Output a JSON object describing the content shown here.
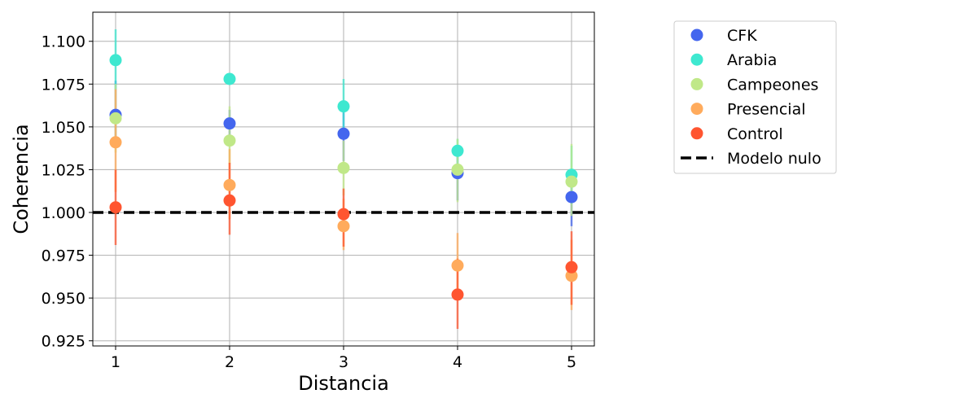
{
  "chart_data": {
    "type": "scatter",
    "xlabel": "Distancia",
    "ylabel": "Coherencia",
    "x": [
      1,
      2,
      3,
      4,
      5
    ],
    "xticks": [
      "1",
      "2",
      "3",
      "4",
      "5"
    ],
    "xlim": [
      0.8,
      5.2
    ],
    "ylim": [
      0.922,
      1.117
    ],
    "yticks": [
      "0.925",
      "0.950",
      "0.975",
      "1.000",
      "1.025",
      "1.050",
      "1.075",
      "1.100"
    ],
    "grid": true,
    "legend_position": "outside right, top",
    "series": [
      {
        "name": "CFK",
        "color": "#4466ee",
        "values": [
          1.057,
          1.052,
          1.046,
          1.023,
          1.009
        ],
        "err_low": [
          1.038,
          1.043,
          1.03,
          1.007,
          0.992
        ],
        "err_high": [
          1.077,
          1.06,
          1.06,
          1.038,
          1.023
        ]
      },
      {
        "name": "Arabia",
        "color": "#3ee8d0",
        "values": [
          1.089,
          1.078,
          1.062,
          1.036,
          1.022
        ],
        "err_low": [
          1.072,
          1.078,
          1.048,
          1.027,
          1.005
        ],
        "err_high": [
          1.107,
          1.078,
          1.078,
          1.043,
          1.039
        ]
      },
      {
        "name": "Campeones",
        "color": "#c0e888",
        "values": [
          1.055,
          1.042,
          1.026,
          1.025,
          1.018
        ],
        "err_low": [
          1.035,
          1.028,
          1.01,
          1.006,
          0.998
        ],
        "err_high": [
          1.075,
          1.062,
          1.042,
          1.043,
          1.04
        ]
      },
      {
        "name": "Presencial",
        "color": "#ffab5c",
        "values": [
          1.041,
          1.016,
          0.992,
          0.969,
          0.963
        ],
        "err_low": [
          1.012,
          0.996,
          0.978,
          0.951,
          0.943
        ],
        "err_high": [
          1.072,
          1.037,
          1.008,
          0.988,
          0.984
        ]
      },
      {
        "name": "Control",
        "color": "#ff5530",
        "values": [
          1.003,
          1.007,
          0.999,
          0.952,
          0.968
        ],
        "err_low": [
          0.981,
          0.987,
          0.98,
          0.932,
          0.946
        ],
        "err_high": [
          1.025,
          1.029,
          1.014,
          0.973,
          0.989
        ]
      }
    ],
    "reference_line": {
      "name": "Modelo nulo",
      "y": 1.0,
      "style": "dashed",
      "color": "#000000"
    }
  }
}
